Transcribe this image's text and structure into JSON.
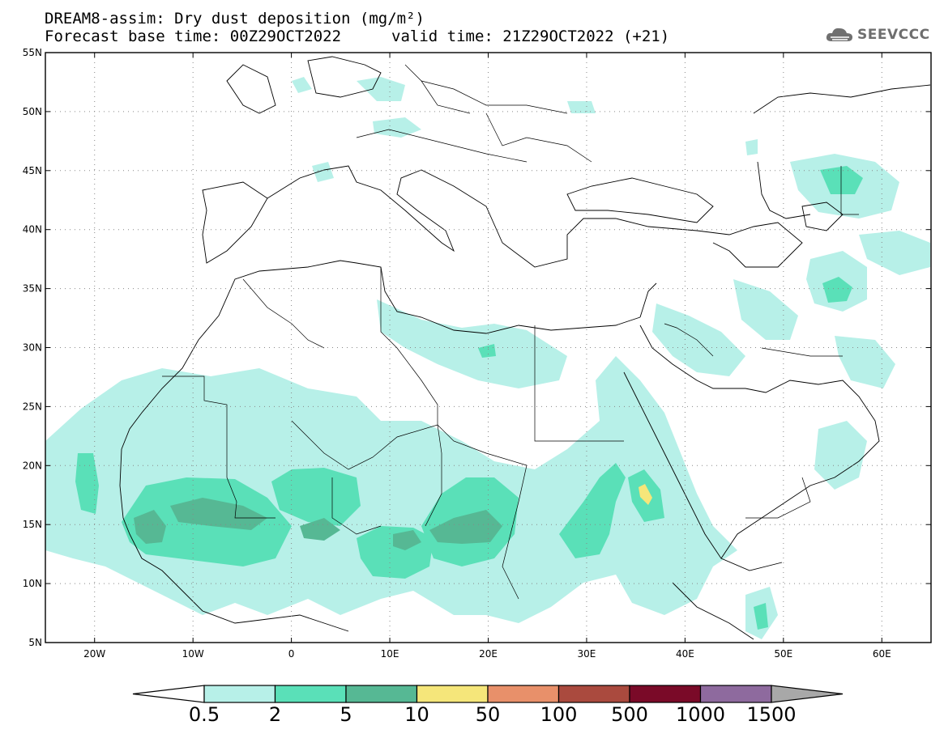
{
  "header": {
    "title": "DREAM8-assim: Dry dust deposition (mg/m²)",
    "base_time": "Forecast base time: 00Z29OCT2022",
    "valid_time": "valid time: 21Z29OCT2022 (+21)",
    "logo_text": "SEEVCCC"
  },
  "map": {
    "lon_range": [
      -25,
      65
    ],
    "lat_range": [
      5,
      55
    ],
    "lat_labels": [
      "55N",
      "50N",
      "45N",
      "40N",
      "35N",
      "30N",
      "25N",
      "20N",
      "15N",
      "10N",
      "5N"
    ],
    "lon_labels": [
      "20W",
      "10W",
      "0",
      "10E",
      "20E",
      "30E",
      "40E",
      "50E",
      "60E"
    ]
  },
  "colorbar": {
    "labels": [
      "0.5",
      "2",
      "5",
      "10",
      "50",
      "100",
      "500",
      "1000",
      "1500"
    ],
    "colors": [
      "#b7f0e8",
      "#5ae0b8",
      "#56b894",
      "#f5e67a",
      "#e8906a",
      "#aa4a3e",
      "#7a0a28",
      "#8e6a9e"
    ],
    "low_color": "#ffffff",
    "high_color": "#a8a8a8"
  }
}
